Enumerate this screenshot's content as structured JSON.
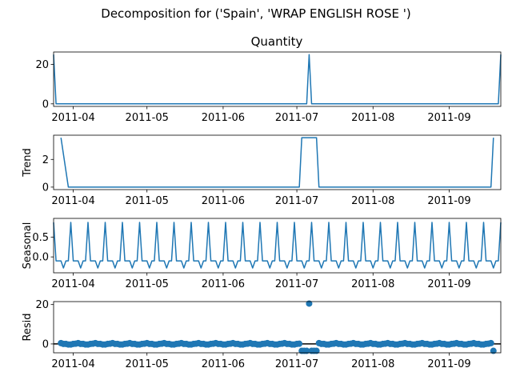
{
  "figure": {
    "title": "Decomposition for ('Spain', 'WRAP ENGLISH ROSE ')"
  },
  "chart_data": [
    {
      "name": "observed",
      "type": "line",
      "title": "Quantity",
      "ylabel": "",
      "xlim": [
        "2011-03-24",
        "2011-09-22"
      ],
      "ylim": [
        -1.3,
        26.3
      ],
      "yticks": [
        0,
        20
      ],
      "xticks": [
        "2011-04",
        "2011-05",
        "2011-06",
        "2011-07",
        "2011-08",
        "2011-09"
      ],
      "grid": false,
      "segments": [
        [
          [
            "2011-03-24",
            25
          ],
          [
            "2011-03-25",
            0
          ],
          [
            "2011-07-05",
            0
          ],
          [
            "2011-07-06",
            25
          ],
          [
            "2011-07-07",
            0
          ],
          [
            "2011-09-21",
            0
          ],
          [
            "2011-09-22",
            25
          ]
        ]
      ]
    },
    {
      "name": "trend",
      "type": "line",
      "title": "",
      "ylabel": "Trend",
      "xlim": [
        "2011-03-24",
        "2011-09-22"
      ],
      "ylim": [
        -0.18,
        3.75
      ],
      "yticks": [
        0,
        2
      ],
      "xticks": [
        "2011-04",
        "2011-05",
        "2011-06",
        "2011-07",
        "2011-08",
        "2011-09"
      ],
      "grid": false,
      "segments": [
        [
          [
            "2011-03-27",
            3.57
          ],
          [
            "2011-03-30",
            0
          ],
          [
            "2011-07-02",
            0
          ],
          [
            "2011-07-03",
            3.57
          ],
          [
            "2011-07-09",
            3.57
          ],
          [
            "2011-07-10",
            0
          ],
          [
            "2011-09-18",
            0
          ],
          [
            "2011-09-19",
            3.57
          ]
        ]
      ]
    },
    {
      "name": "seasonal",
      "type": "line",
      "title": "",
      "ylabel": "Seasonal",
      "xlim": [
        "2011-03-24",
        "2011-09-22"
      ],
      "ylim": [
        -0.4,
        0.97
      ],
      "yticks": [
        0.0,
        0.5
      ],
      "ytick_labels": [
        "0.0",
        "0.5"
      ],
      "xticks": [
        "2011-04",
        "2011-05",
        "2011-06",
        "2011-07",
        "2011-08",
        "2011-09"
      ],
      "grid": false,
      "period_days": 7,
      "start": "2011-03-24",
      "end": "2011-09-22",
      "cycle_values": [
        0.87,
        -0.1,
        -0.1,
        -0.1,
        -0.28,
        -0.1,
        -0.1
      ]
    },
    {
      "name": "resid",
      "type": "scatter",
      "title": "",
      "ylabel": "Resid",
      "xlim": [
        "2011-03-24",
        "2011-09-22"
      ],
      "ylim": [
        -4.5,
        21.5
      ],
      "yticks": [
        0,
        20
      ],
      "xticks": [
        "2011-04",
        "2011-05",
        "2011-06",
        "2011-07",
        "2011-08",
        "2011-09"
      ],
      "grid": false,
      "zero_line": true,
      "points_ranges": [
        {
          "from": "2011-03-27",
          "to": "2011-07-02",
          "pattern": [
            0.42,
            0.0,
            0.0,
            -0.3,
            -0.3,
            0.0,
            0.1
          ]
        },
        {
          "from": "2011-07-03",
          "to": "2011-07-09",
          "values": [
            -3.5,
            -3.5,
            -3.5,
            20.5,
            -3.5,
            -3.5,
            -3.5
          ]
        },
        {
          "from": "2011-07-10",
          "to": "2011-09-18",
          "pattern": [
            0.42,
            0.0,
            0.0,
            -0.3,
            -0.3,
            0.0,
            0.1
          ]
        },
        {
          "from": "2011-09-19",
          "to": "2011-09-19",
          "values": [
            -3.5
          ]
        }
      ]
    }
  ]
}
